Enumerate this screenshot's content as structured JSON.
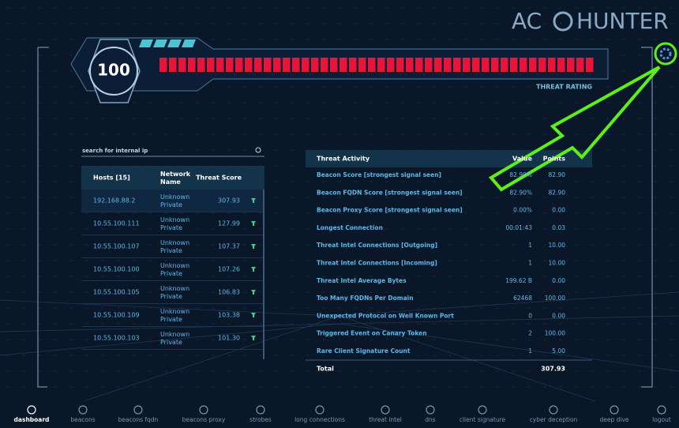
{
  "header": {
    "logo_left": "AC",
    "logo_right": "HUNTER"
  },
  "threat": {
    "score": "100",
    "label": "THREAT RATING"
  },
  "search": {
    "placeholder": "search for internal ip"
  },
  "hosts": {
    "headers": [
      "Hosts [15]",
      "Network Name",
      "Threat Score"
    ],
    "rows": [
      [
        "192.168.88.2",
        "Unknown Private",
        "307.93"
      ],
      [
        "10.55.100.111",
        "Unknown Private",
        "127.99"
      ],
      [
        "10.55.100.107",
        "Unknown Private",
        "107.37"
      ],
      [
        "10.55.100.100",
        "Unknown Private",
        "107.26"
      ],
      [
        "10.55.100.105",
        "Unknown Private",
        "106.83"
      ],
      [
        "10.55.100.109",
        "Unknown Private",
        "103.38"
      ],
      [
        "10.55.100.103",
        "Unknown Private",
        "101.30"
      ]
    ]
  },
  "activity": {
    "headers": [
      "Threat Activity",
      "Value",
      "Points"
    ],
    "rows": [
      [
        "Beacon Score [strongest signal seen]",
        "82.90%",
        "82.90"
      ],
      [
        "Beacon FQDN Score [strongest signal seen]",
        "82.90%",
        "82.90"
      ],
      [
        "Beacon Proxy Score [strongest signal seen]",
        "0.00%",
        "0.00"
      ],
      [
        "Longest Connection",
        "00:01:43",
        "0.03"
      ],
      [
        "Threat Intel Connections [Outgoing]",
        "1",
        "10.00"
      ],
      [
        "Threat Intel Connections [Incoming]",
        "1",
        "10.00"
      ],
      [
        "Threat Intel Average Bytes",
        "199.62 B",
        "0.00"
      ],
      [
        "Too Many FQDNs Per Domain",
        "62468",
        "100.00"
      ],
      [
        "Unexpected Protocol on Well Known Port",
        "0",
        "0.00"
      ],
      [
        "Triggered Event on Canary Token",
        "2",
        "100.00"
      ],
      [
        "Rare Client Signature Count",
        "1",
        "5.00"
      ]
    ],
    "total": [
      "Total",
      "307.93"
    ]
  },
  "nav": [
    "dashboard",
    "beacons",
    "beacons fqdn",
    "beacons proxy",
    "strobes",
    "long connections",
    "threat intel",
    "dns",
    "client signature",
    "cyber deception",
    "deep dive",
    "logout"
  ]
}
